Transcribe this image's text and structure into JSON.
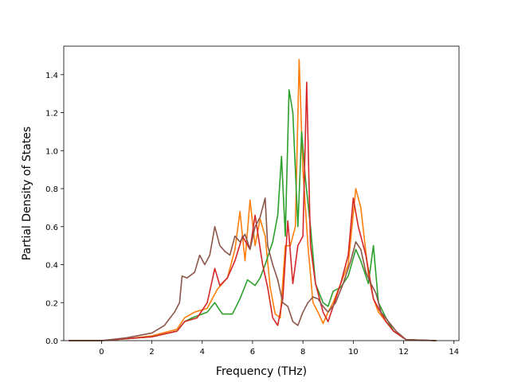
{
  "chart_data": {
    "type": "line",
    "title": "",
    "xlabel": "Frequency (THz)",
    "ylabel": "Partial Density of States",
    "xlim": [
      -1.5,
      14.2
    ],
    "ylim": [
      0,
      1.55
    ],
    "xticks": [
      0,
      2,
      4,
      6,
      8,
      10,
      12,
      14
    ],
    "yticks": [
      0.0,
      0.2,
      0.4,
      0.6,
      0.8,
      1.0,
      1.2,
      1.4
    ],
    "grid": false,
    "legend": "none",
    "series": [
      {
        "color": "#ff7f0e",
        "points": [
          [
            -1.3,
            0
          ],
          [
            0,
            0
          ],
          [
            1,
            0.01
          ],
          [
            2,
            0.025
          ],
          [
            3,
            0.06
          ],
          [
            3.3,
            0.12
          ],
          [
            3.7,
            0.15
          ],
          [
            4.2,
            0.17
          ],
          [
            4.6,
            0.27
          ],
          [
            5,
            0.33
          ],
          [
            5.3,
            0.48
          ],
          [
            5.5,
            0.68
          ],
          [
            5.7,
            0.42
          ],
          [
            5.9,
            0.74
          ],
          [
            6.1,
            0.5
          ],
          [
            6.3,
            0.64
          ],
          [
            6.5,
            0.55
          ],
          [
            6.7,
            0.28
          ],
          [
            6.9,
            0.14
          ],
          [
            7.1,
            0.12
          ],
          [
            7.3,
            0.5
          ],
          [
            7.5,
            0.5
          ],
          [
            7.7,
            0.6
          ],
          [
            7.85,
            1.48
          ],
          [
            8.0,
            0.9
          ],
          [
            8.2,
            0.5
          ],
          [
            8.4,
            0.2
          ],
          [
            8.6,
            0.15
          ],
          [
            8.8,
            0.09
          ],
          [
            9.0,
            0.15
          ],
          [
            9.2,
            0.2
          ],
          [
            9.5,
            0.3
          ],
          [
            9.8,
            0.4
          ],
          [
            10.1,
            0.8
          ],
          [
            10.3,
            0.7
          ],
          [
            10.6,
            0.35
          ],
          [
            10.8,
            0.22
          ],
          [
            11.0,
            0.15
          ],
          [
            11.3,
            0.1
          ],
          [
            11.6,
            0.05
          ],
          [
            12.1,
            0.005
          ],
          [
            13.3,
            0
          ]
        ]
      },
      {
        "color": "#2ca02c",
        "points": [
          [
            -1.3,
            0
          ],
          [
            0,
            0
          ],
          [
            1,
            0.01
          ],
          [
            2,
            0.02
          ],
          [
            3,
            0.05
          ],
          [
            3.3,
            0.1
          ],
          [
            3.6,
            0.12
          ],
          [
            4.2,
            0.15
          ],
          [
            4.5,
            0.2
          ],
          [
            4.8,
            0.14
          ],
          [
            5.2,
            0.14
          ],
          [
            5.5,
            0.22
          ],
          [
            5.8,
            0.32
          ],
          [
            6.1,
            0.29
          ],
          [
            6.3,
            0.33
          ],
          [
            6.5,
            0.4
          ],
          [
            6.8,
            0.52
          ],
          [
            7.0,
            0.66
          ],
          [
            7.15,
            0.97
          ],
          [
            7.3,
            0.55
          ],
          [
            7.45,
            1.32
          ],
          [
            7.6,
            1.2
          ],
          [
            7.8,
            0.6
          ],
          [
            7.95,
            1.1
          ],
          [
            8.1,
            0.85
          ],
          [
            8.3,
            0.6
          ],
          [
            8.5,
            0.3
          ],
          [
            8.8,
            0.2
          ],
          [
            9.0,
            0.18
          ],
          [
            9.2,
            0.26
          ],
          [
            9.5,
            0.28
          ],
          [
            9.8,
            0.34
          ],
          [
            10.1,
            0.48
          ],
          [
            10.3,
            0.42
          ],
          [
            10.6,
            0.3
          ],
          [
            10.8,
            0.5
          ],
          [
            11.0,
            0.2
          ],
          [
            11.3,
            0.12
          ],
          [
            11.6,
            0.05
          ],
          [
            12.1,
            0.005
          ],
          [
            13.3,
            0
          ]
        ]
      },
      {
        "color": "#d62728",
        "points": [
          [
            -1.3,
            0
          ],
          [
            0,
            0
          ],
          [
            1,
            0.01
          ],
          [
            2,
            0.02
          ],
          [
            3,
            0.05
          ],
          [
            3.3,
            0.1
          ],
          [
            3.8,
            0.12
          ],
          [
            4.2,
            0.2
          ],
          [
            4.5,
            0.38
          ],
          [
            4.7,
            0.29
          ],
          [
            5,
            0.33
          ],
          [
            5.3,
            0.42
          ],
          [
            5.6,
            0.55
          ],
          [
            5.9,
            0.48
          ],
          [
            6.1,
            0.66
          ],
          [
            6.4,
            0.4
          ],
          [
            6.6,
            0.28
          ],
          [
            6.8,
            0.12
          ],
          [
            7.0,
            0.08
          ],
          [
            7.2,
            0.22
          ],
          [
            7.4,
            0.63
          ],
          [
            7.6,
            0.3
          ],
          [
            7.8,
            0.5
          ],
          [
            8.0,
            0.55
          ],
          [
            8.15,
            1.36
          ],
          [
            8.3,
            0.5
          ],
          [
            8.5,
            0.3
          ],
          [
            8.8,
            0.15
          ],
          [
            9.0,
            0.1
          ],
          [
            9.2,
            0.18
          ],
          [
            9.5,
            0.3
          ],
          [
            9.8,
            0.45
          ],
          [
            10.0,
            0.75
          ],
          [
            10.2,
            0.6
          ],
          [
            10.5,
            0.45
          ],
          [
            10.8,
            0.22
          ],
          [
            11.0,
            0.17
          ],
          [
            11.3,
            0.1
          ],
          [
            11.6,
            0.05
          ],
          [
            12.1,
            0.005
          ],
          [
            13.3,
            0
          ]
        ]
      },
      {
        "color": "#8c564b",
        "points": [
          [
            -1.3,
            0
          ],
          [
            0,
            0
          ],
          [
            1,
            0.015
          ],
          [
            2,
            0.04
          ],
          [
            2.5,
            0.08
          ],
          [
            2.9,
            0.15
          ],
          [
            3.1,
            0.2
          ],
          [
            3.2,
            0.34
          ],
          [
            3.4,
            0.33
          ],
          [
            3.7,
            0.36
          ],
          [
            3.9,
            0.45
          ],
          [
            4.1,
            0.4
          ],
          [
            4.3,
            0.45
          ],
          [
            4.5,
            0.6
          ],
          [
            4.7,
            0.5
          ],
          [
            4.9,
            0.47
          ],
          [
            5.1,
            0.45
          ],
          [
            5.3,
            0.55
          ],
          [
            5.5,
            0.52
          ],
          [
            5.7,
            0.56
          ],
          [
            5.9,
            0.48
          ],
          [
            6.1,
            0.6
          ],
          [
            6.3,
            0.65
          ],
          [
            6.5,
            0.75
          ],
          [
            6.6,
            0.5
          ],
          [
            6.8,
            0.4
          ],
          [
            7.0,
            0.32
          ],
          [
            7.2,
            0.2
          ],
          [
            7.4,
            0.18
          ],
          [
            7.6,
            0.1
          ],
          [
            7.8,
            0.08
          ],
          [
            8.0,
            0.15
          ],
          [
            8.2,
            0.2
          ],
          [
            8.4,
            0.23
          ],
          [
            8.6,
            0.22
          ],
          [
            8.8,
            0.18
          ],
          [
            9.0,
            0.15
          ],
          [
            9.3,
            0.2
          ],
          [
            9.6,
            0.3
          ],
          [
            9.9,
            0.42
          ],
          [
            10.1,
            0.52
          ],
          [
            10.3,
            0.48
          ],
          [
            10.5,
            0.36
          ],
          [
            10.7,
            0.3
          ],
          [
            10.9,
            0.25
          ],
          [
            11.1,
            0.15
          ],
          [
            11.4,
            0.1
          ],
          [
            11.7,
            0.05
          ],
          [
            12.1,
            0.005
          ],
          [
            13.3,
            0
          ]
        ]
      }
    ]
  }
}
